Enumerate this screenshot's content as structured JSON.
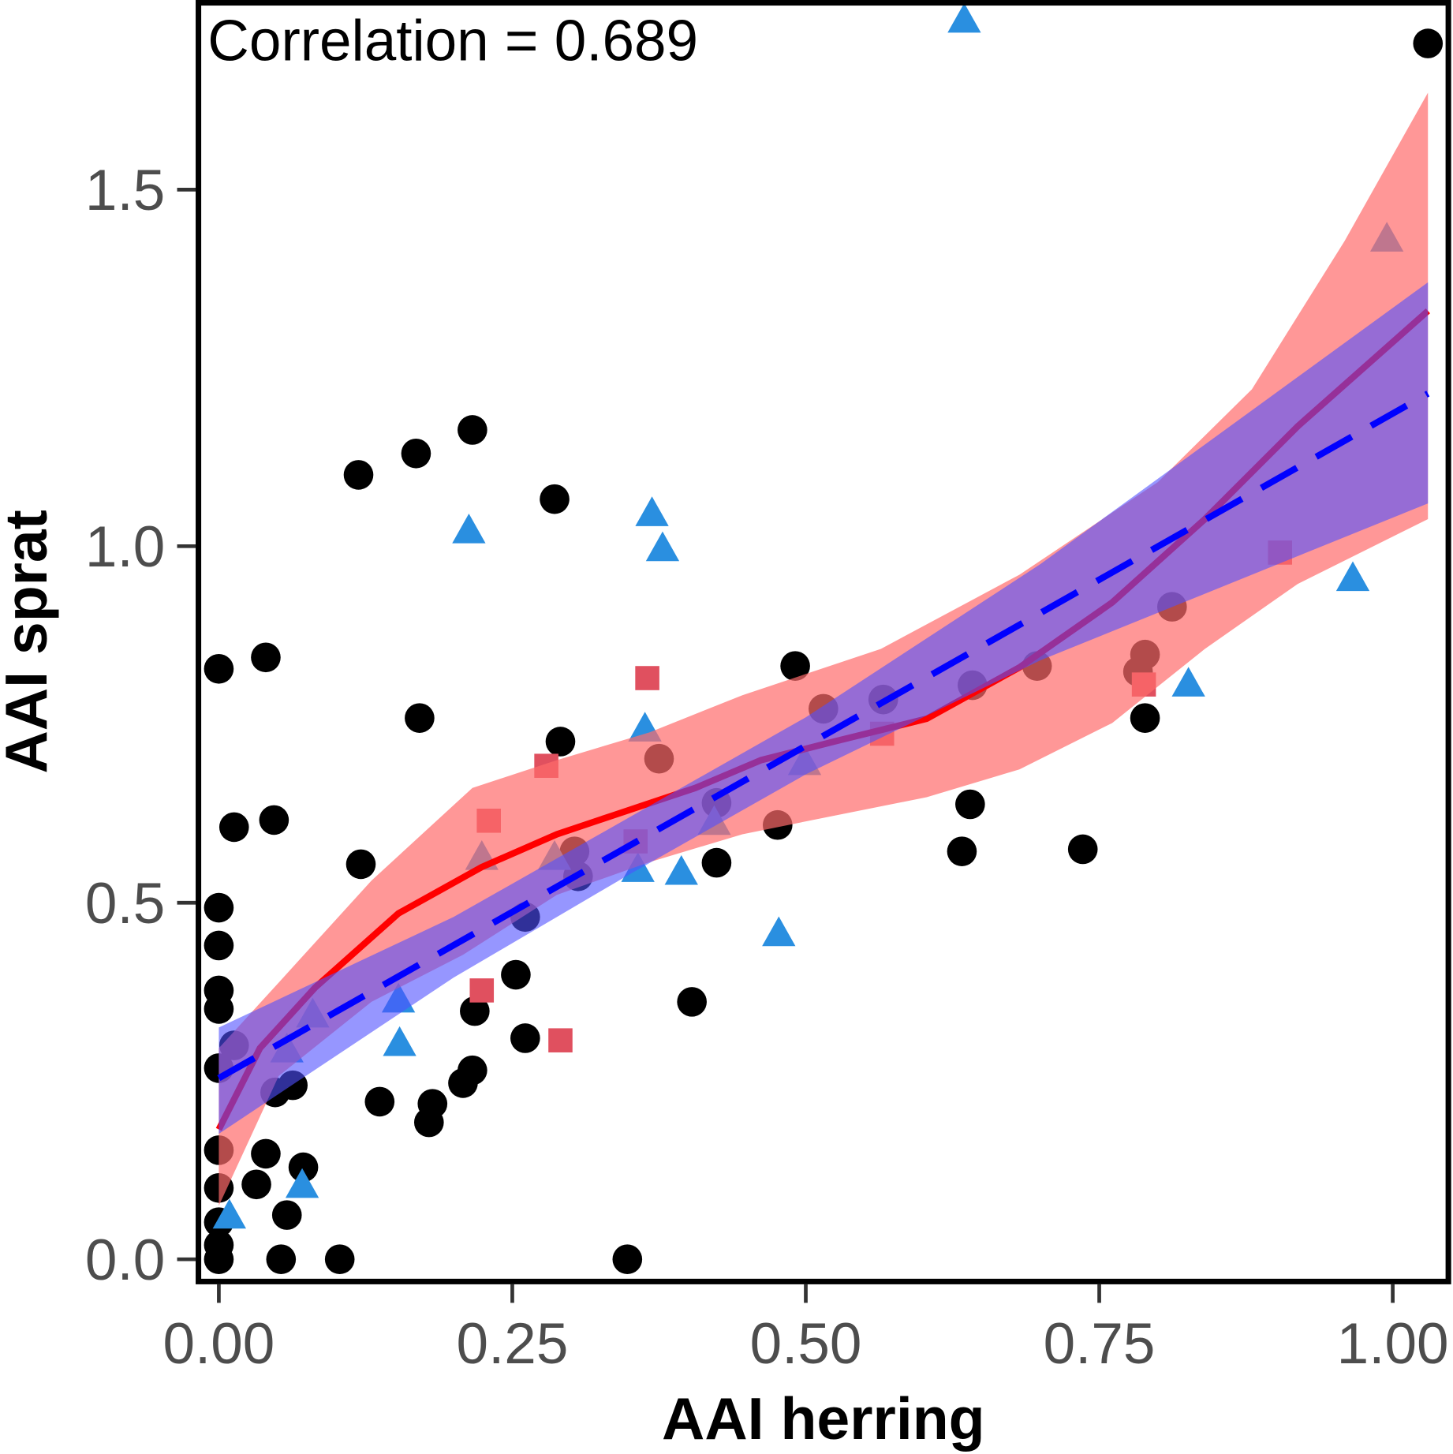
{
  "chart_data": {
    "type": "scatter",
    "xlabel": "AAI herring",
    "ylabel": "AAI sprat",
    "annotation": "Correlation = 0.689",
    "xlim": [
      -0.035,
      1.05
    ],
    "ylim": [
      -0.03,
      1.77
    ],
    "xticks": [
      {
        "v": 0,
        "label": "0.00"
      },
      {
        "v": 0.25,
        "label": "0.25"
      },
      {
        "v": 0.5,
        "label": "0.50"
      },
      {
        "v": 0.75,
        "label": "0.75"
      },
      {
        "v": 1.0,
        "label": "1.00"
      }
    ],
    "yticks": [
      {
        "v": 0,
        "label": "0.0"
      },
      {
        "v": 0.5,
        "label": "0.5"
      },
      {
        "v": 1.0,
        "label": "1.0"
      },
      {
        "v": 1.5,
        "label": "1.5"
      }
    ],
    "grid": false,
    "colors": {
      "circle": "#000000",
      "triangle": "#2A8FE0",
      "square": "#E0505F",
      "loess_line": "#FF0000",
      "loess_band": "#FF6B6B",
      "linear_line": "#0000FF",
      "linear_band": "#5050FF"
    },
    "series": [
      {
        "name": "circles",
        "marker": "circle",
        "points": [
          [
            1.03,
            1.705
          ],
          [
            0,
            0.828
          ],
          [
            0.04,
            0.844
          ],
          [
            0.119,
            1.1
          ],
          [
            0.168,
            1.13
          ],
          [
            0.216,
            1.163
          ],
          [
            0.286,
            1.066
          ],
          [
            0.013,
            0.606
          ],
          [
            0.047,
            0.616
          ],
          [
            0.171,
            0.759
          ],
          [
            0.291,
            0.726
          ],
          [
            0.121,
            0.554
          ],
          [
            0,
            0.493
          ],
          [
            0,
            0.44
          ],
          [
            0,
            0.377
          ],
          [
            0,
            0.351
          ],
          [
            0,
            0.268
          ],
          [
            0,
            0.153
          ],
          [
            0,
            0.1
          ],
          [
            0,
            0.052
          ],
          [
            0,
            0.02
          ],
          [
            0,
            0
          ],
          [
            0.032,
            0.105
          ],
          [
            0.04,
            0.148
          ],
          [
            0.058,
            0.062
          ],
          [
            0.072,
            0.129
          ],
          [
            0.053,
            0
          ],
          [
            0.103,
            0
          ],
          [
            0.348,
            0
          ],
          [
            0.013,
            0.3
          ],
          [
            0.048,
            0.234
          ],
          [
            0.063,
            0.244
          ],
          [
            0.137,
            0.221
          ],
          [
            0.182,
            0.218
          ],
          [
            0.179,
            0.192
          ],
          [
            0.208,
            0.247
          ],
          [
            0.216,
            0.265
          ],
          [
            0.218,
            0.348
          ],
          [
            0.253,
            0.399
          ],
          [
            0.261,
            0.31
          ],
          [
            0.261,
            0.48
          ],
          [
            0.303,
            0.572
          ],
          [
            0.306,
            0.537
          ],
          [
            0.403,
            0.361
          ],
          [
            0.424,
            0.556
          ],
          [
            0.424,
            0.64
          ],
          [
            0.375,
            0.702
          ],
          [
            0.476,
            0.609
          ],
          [
            0.491,
            0.832
          ],
          [
            0.515,
            0.772
          ],
          [
            0.566,
            0.785
          ],
          [
            0.633,
            0.572
          ],
          [
            0.64,
            0.638
          ],
          [
            0.642,
            0.805
          ],
          [
            0.697,
            0.832
          ],
          [
            0.736,
            0.575
          ],
          [
            0.783,
            0.824
          ],
          [
            0.789,
            0.848
          ],
          [
            0.789,
            0.759
          ],
          [
            0.812,
            0.915
          ]
        ]
      },
      {
        "name": "triangles",
        "marker": "triangle",
        "points": [
          [
            0.635,
            1.737
          ],
          [
            0.995,
            1.43
          ],
          [
            0.966,
            0.954
          ],
          [
            0.826,
            0.806
          ],
          [
            0.369,
            1.045
          ],
          [
            0.378,
            0.996
          ],
          [
            0.213,
            1.021
          ],
          [
            0.363,
            0.743
          ],
          [
            0.499,
            0.696
          ],
          [
            0.422,
            0.612
          ],
          [
            0.224,
            0.563
          ],
          [
            0.286,
            0.563
          ],
          [
            0.357,
            0.546
          ],
          [
            0.394,
            0.542
          ],
          [
            0.477,
            0.456
          ],
          [
            0.153,
            0.363
          ],
          [
            0.154,
            0.302
          ],
          [
            0.08,
            0.342
          ],
          [
            0.058,
            0.293
          ],
          [
            0.071,
            0.103
          ],
          [
            0.009,
            0.06
          ]
        ]
      },
      {
        "name": "squares",
        "marker": "square",
        "points": [
          [
            0.365,
            0.815
          ],
          [
            0.279,
            0.692
          ],
          [
            0.23,
            0.615
          ],
          [
            0.355,
            0.586
          ],
          [
            0.565,
            0.737
          ],
          [
            0.224,
            0.377
          ],
          [
            0.291,
            0.307
          ],
          [
            0.788,
            0.806
          ],
          [
            0.904,
            0.991
          ]
        ]
      }
    ],
    "fits": [
      {
        "name": "loess",
        "style": "solid",
        "line": [
          [
            0,
            0.182
          ],
          [
            0.035,
            0.296
          ],
          [
            0.082,
            0.381
          ],
          [
            0.153,
            0.485
          ],
          [
            0.224,
            0.55
          ],
          [
            0.288,
            0.596
          ],
          [
            0.335,
            0.622
          ],
          [
            0.406,
            0.661
          ],
          [
            0.462,
            0.7
          ],
          [
            0.524,
            0.726
          ],
          [
            0.603,
            0.758
          ],
          [
            0.682,
            0.83
          ],
          [
            0.761,
            0.921
          ],
          [
            0.84,
            1.038
          ],
          [
            0.919,
            1.168
          ],
          [
            1.03,
            1.33
          ]
        ],
        "upper": [
          [
            0,
            0.296
          ],
          [
            0.051,
            0.388
          ],
          [
            0.13,
            0.531
          ],
          [
            0.216,
            0.661
          ],
          [
            0.288,
            0.7
          ],
          [
            0.367,
            0.739
          ],
          [
            0.446,
            0.791
          ],
          [
            0.564,
            0.856
          ],
          [
            0.682,
            0.96
          ],
          [
            0.8,
            1.09
          ],
          [
            0.88,
            1.22
          ],
          [
            0.959,
            1.428
          ],
          [
            1.03,
            1.636
          ]
        ],
        "lower": [
          [
            0,
            0.075
          ],
          [
            0.051,
            0.257
          ],
          [
            0.13,
            0.361
          ],
          [
            0.208,
            0.427
          ],
          [
            0.288,
            0.511
          ],
          [
            0.367,
            0.557
          ],
          [
            0.446,
            0.596
          ],
          [
            0.524,
            0.622
          ],
          [
            0.603,
            0.648
          ],
          [
            0.682,
            0.687
          ],
          [
            0.761,
            0.752
          ],
          [
            0.84,
            0.856
          ],
          [
            0.919,
            0.947
          ],
          [
            1.03,
            1.038
          ]
        ]
      },
      {
        "name": "linear",
        "style": "dashed",
        "line": [
          [
            0,
            0.254
          ],
          [
            1.03,
            1.214
          ]
        ],
        "upper": [
          [
            0,
            0.325
          ],
          [
            0.2,
            0.48
          ],
          [
            0.35,
            0.62
          ],
          [
            0.5,
            0.76
          ],
          [
            0.7,
            0.975
          ],
          [
            1.03,
            1.37
          ]
        ],
        "lower": [
          [
            0,
            0.176
          ],
          [
            0.2,
            0.395
          ],
          [
            0.35,
            0.54
          ],
          [
            0.5,
            0.68
          ],
          [
            0.7,
            0.84
          ],
          [
            1.03,
            1.06
          ]
        ]
      }
    ]
  }
}
